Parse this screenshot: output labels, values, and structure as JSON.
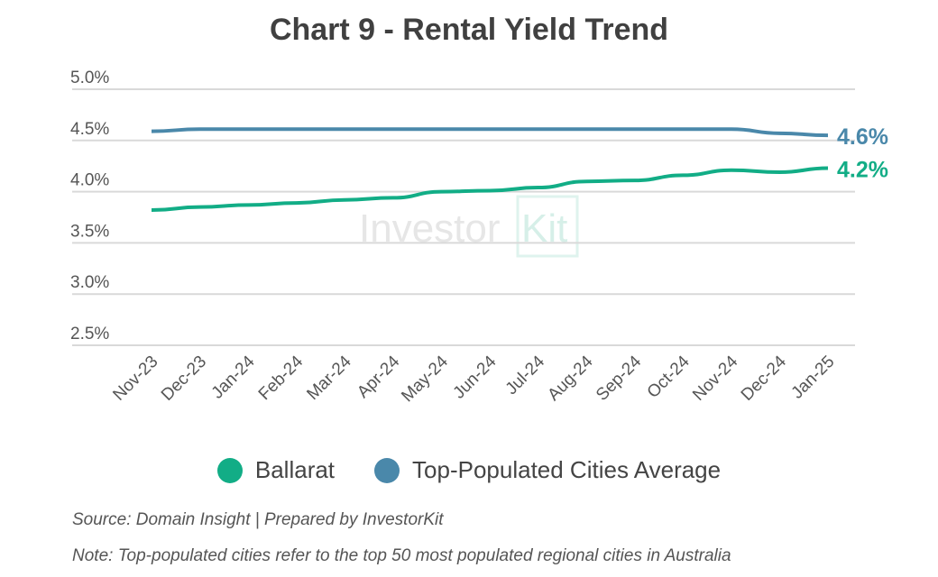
{
  "chart_data": {
    "type": "line",
    "title": "Chart 9 - Rental Yield Trend",
    "categories": [
      "Nov-23",
      "Dec-23",
      "Jan-24",
      "Feb-24",
      "Mar-24",
      "Apr-24",
      "May-24",
      "Jun-24",
      "Jul-24",
      "Aug-24",
      "Sep-24",
      "Oct-24",
      "Nov-24",
      "Dec-24",
      "Jan-25"
    ],
    "yticks": [
      "5.0%",
      "4.5%",
      "4.0%",
      "3.5%",
      "3.0%",
      "2.5%"
    ],
    "ylim": [
      2.5,
      5.0
    ],
    "grid": true,
    "legend_position": "bottom",
    "series": [
      {
        "name": "Ballarat",
        "color": "#12AD86",
        "end_label": "4.2%",
        "values": [
          3.82,
          3.85,
          3.87,
          3.89,
          3.92,
          3.94,
          4.0,
          4.01,
          4.04,
          4.1,
          4.11,
          4.16,
          4.21,
          4.19,
          4.23
        ]
      },
      {
        "name": "Top-Populated Cities Average",
        "color": "#4A88AA",
        "end_label": "4.6%",
        "values": [
          4.59,
          4.61,
          4.61,
          4.61,
          4.61,
          4.61,
          4.61,
          4.61,
          4.61,
          4.61,
          4.61,
          4.61,
          4.61,
          4.57,
          4.55
        ]
      }
    ]
  },
  "watermark": "InvestorKit",
  "source": "Source: Domain Insight | Prepared by InvestorKit",
  "note": "Note: Top-populated cities refer to the top 50 most populated regional cities in Australia"
}
